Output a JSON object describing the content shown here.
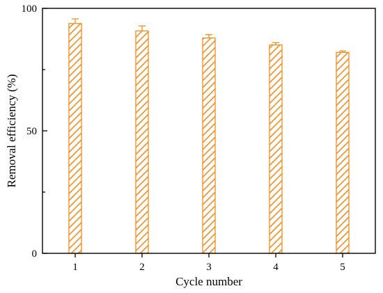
{
  "chart_data": {
    "type": "bar",
    "categories": [
      "1",
      "2",
      "3",
      "4",
      "5"
    ],
    "values": [
      93.8,
      90.8,
      87.9,
      85.1,
      82.0
    ],
    "errors": [
      1.9,
      2.0,
      1.4,
      0.9,
      0.6
    ],
    "xlabel": "Cycle number",
    "ylabel": "Removal efficiency (%)",
    "ylim": [
      0,
      100
    ],
    "yticks": [
      "0",
      "50",
      "100"
    ],
    "grid": false,
    "bar_color": "#F28C1E",
    "bar_fill": "diagonal-hatch"
  }
}
